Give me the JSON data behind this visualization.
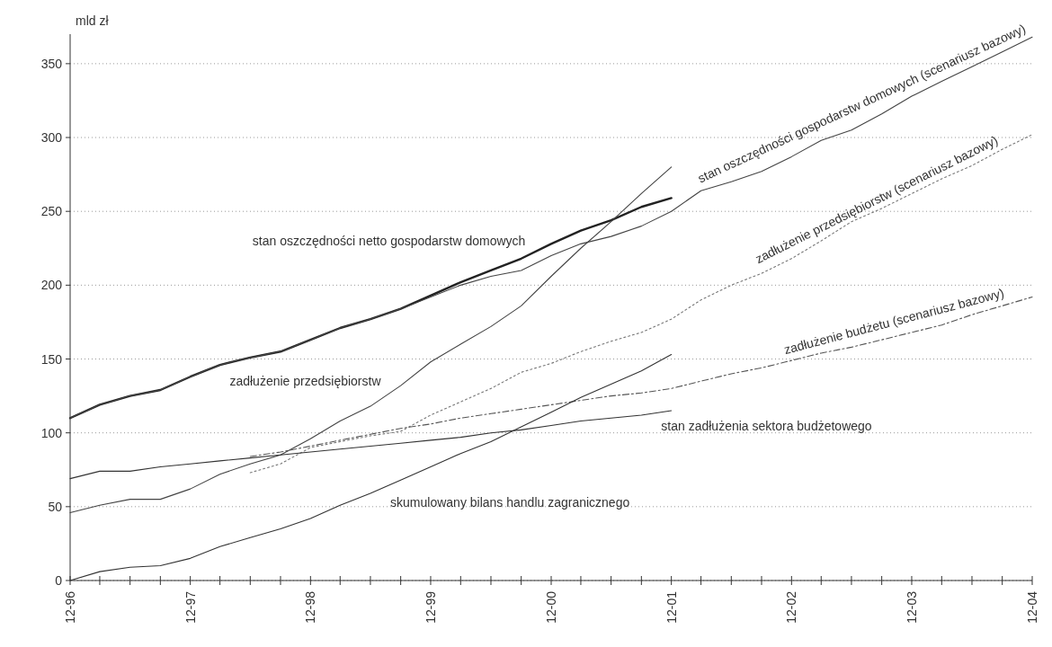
{
  "chart_data": {
    "type": "line",
    "ylabel": "mld zł",
    "x": [
      "1996-12",
      "1997-03",
      "1997-06",
      "1997-09",
      "1997-12",
      "1998-03",
      "1998-06",
      "1998-09",
      "1998-12",
      "1999-03",
      "1999-06",
      "1999-09",
      "1999-12",
      "2000-03",
      "2000-06",
      "2000-09",
      "2000-12",
      "2001-03",
      "2001-06",
      "2001-09",
      "2001-12",
      "2002-03",
      "2002-06",
      "2002-09",
      "2002-12",
      "2003-03",
      "2003-06",
      "2003-09",
      "2003-12",
      "2004-03",
      "2004-06",
      "2004-09",
      "2004-12"
    ],
    "xlim": [
      "1996-12",
      "2004-12"
    ],
    "xticks": [
      {
        "value": "1996-12",
        "label": "12-96"
      },
      {
        "value": "1997-03",
        "label": null
      },
      {
        "value": "1997-06",
        "label": null
      },
      {
        "value": "1997-09",
        "label": null
      },
      {
        "value": "1997-12",
        "label": "12-97"
      },
      {
        "value": "1998-03",
        "label": null
      },
      {
        "value": "1998-06",
        "label": null
      },
      {
        "value": "1998-09",
        "label": null
      },
      {
        "value": "1998-12",
        "label": "12-98"
      },
      {
        "value": "1999-03",
        "label": null
      },
      {
        "value": "1999-06",
        "label": null
      },
      {
        "value": "1999-09",
        "label": null
      },
      {
        "value": "1999-12",
        "label": "12-99"
      },
      {
        "value": "2000-03",
        "label": null
      },
      {
        "value": "2000-06",
        "label": null
      },
      {
        "value": "2000-09",
        "label": null
      },
      {
        "value": "2000-12",
        "label": "12-00"
      },
      {
        "value": "2001-03",
        "label": null
      },
      {
        "value": "2001-06",
        "label": null
      },
      {
        "value": "2001-09",
        "label": null
      },
      {
        "value": "2001-12",
        "label": "12-01"
      },
      {
        "value": "2002-03",
        "label": null
      },
      {
        "value": "2002-06",
        "label": null
      },
      {
        "value": "2002-09",
        "label": null
      },
      {
        "value": "2002-12",
        "label": "12-02"
      },
      {
        "value": "2003-03",
        "label": null
      },
      {
        "value": "2003-06",
        "label": null
      },
      {
        "value": "2003-09",
        "label": null
      },
      {
        "value": "2003-12",
        "label": "12-03"
      },
      {
        "value": "2004-03",
        "label": null
      },
      {
        "value": "2004-06",
        "label": null
      },
      {
        "value": "2004-09",
        "label": null
      },
      {
        "value": "2004-12",
        "label": "12-04"
      }
    ],
    "ylim": [
      0,
      370
    ],
    "yticks": [
      0,
      50,
      100,
      150,
      200,
      250,
      300,
      350
    ],
    "grid": "y",
    "legend": false,
    "series": [
      {
        "name": "stan oszczędności netto gospodarstw domowych",
        "color": "#222222",
        "values": [
          110,
          119,
          125,
          129,
          138,
          146,
          151,
          155,
          163,
          171,
          177,
          184,
          193,
          202,
          210,
          218,
          228,
          237,
          244,
          253,
          259,
          null,
          null,
          null,
          null,
          null,
          null,
          null,
          null,
          null,
          null,
          null,
          null
        ]
      },
      {
        "name": "stan oszczędności gospodarstw domowych (scenariusz bazowy)",
        "color": "#444444",
        "values": [
          110,
          119,
          125,
          129,
          138,
          146,
          151,
          155,
          163,
          171,
          177,
          184,
          192,
          200,
          206,
          210,
          220,
          228,
          233,
          240,
          250,
          264,
          270,
          277,
          287,
          298,
          305,
          316,
          328,
          338,
          348,
          358,
          368
        ]
      },
      {
        "name": "zadłużenie przedsiębiorstw",
        "color": "#444444",
        "values": [
          46,
          51,
          55,
          55,
          62,
          72,
          79,
          85,
          96,
          108,
          118,
          132,
          148,
          160,
          172,
          186,
          206,
          225,
          243,
          262,
          280,
          null,
          null,
          null,
          null,
          null,
          null,
          null,
          null,
          null,
          null,
          null,
          null
        ]
      },
      {
        "name": "zadłużenie przedsiębiorstw (scenariusz bazowy)",
        "color": "#777777",
        "line_style": "dotted",
        "values": [
          null,
          null,
          null,
          null,
          null,
          null,
          73,
          79,
          90,
          94,
          98,
          101,
          112,
          121,
          130,
          141,
          147,
          155,
          162,
          168,
          177,
          190,
          200,
          208,
          218,
          230,
          243,
          252,
          262,
          272,
          281,
          292,
          302
        ]
      },
      {
        "name": "zadłużenie budżetu (scenariusz bazowy)",
        "color": "#555555",
        "line_style": "dashed",
        "values": [
          null,
          null,
          null,
          null,
          null,
          null,
          84,
          87,
          91,
          95,
          99,
          103,
          106,
          110,
          113,
          116,
          119,
          122,
          125,
          127,
          130,
          135,
          140,
          144,
          149,
          154,
          158,
          163,
          168,
          173,
          180,
          186,
          192
        ]
      },
      {
        "name": "stan zadłużenia sektora budżetowego",
        "color": "#333333",
        "values": [
          69,
          74,
          74,
          77,
          79,
          81,
          83,
          85,
          87,
          89,
          91,
          93,
          95,
          97,
          100,
          102,
          105,
          108,
          110,
          112,
          115,
          null,
          null,
          null,
          null,
          null,
          null,
          null,
          null,
          null,
          null,
          null,
          null
        ]
      },
      {
        "name": "skumulowany bilans handlu zagranicznego",
        "color": "#333333",
        "values": [
          0,
          6,
          9,
          10,
          15,
          23,
          29,
          35,
          42,
          51,
          59,
          68,
          77,
          86,
          94,
          104,
          114,
          124,
          133,
          142,
          153,
          null,
          null,
          null,
          null,
          null,
          null,
          null,
          null,
          null,
          null,
          null,
          null
        ]
      }
    ]
  }
}
